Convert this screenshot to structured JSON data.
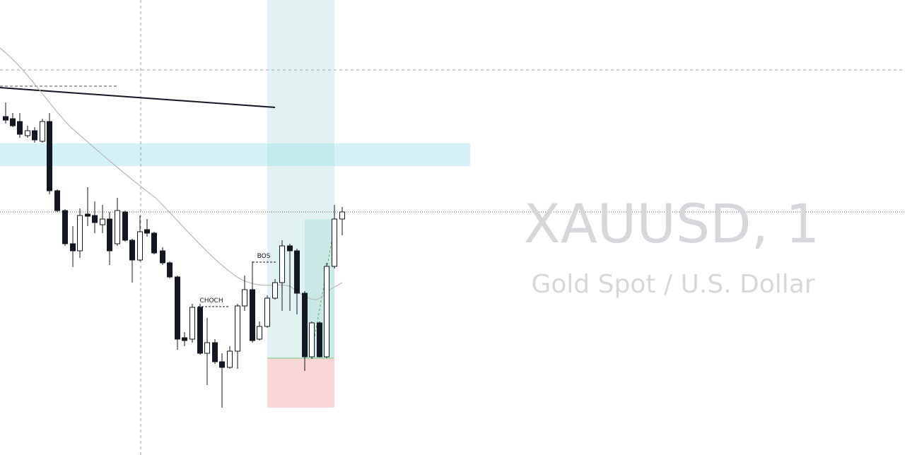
{
  "watermark": {
    "symbol": "XAUUSD, 1",
    "description": "Gold Spot / U.S. Dollar"
  },
  "annotations": {
    "bos": "BOS",
    "choch": "CHOCH"
  }
}
